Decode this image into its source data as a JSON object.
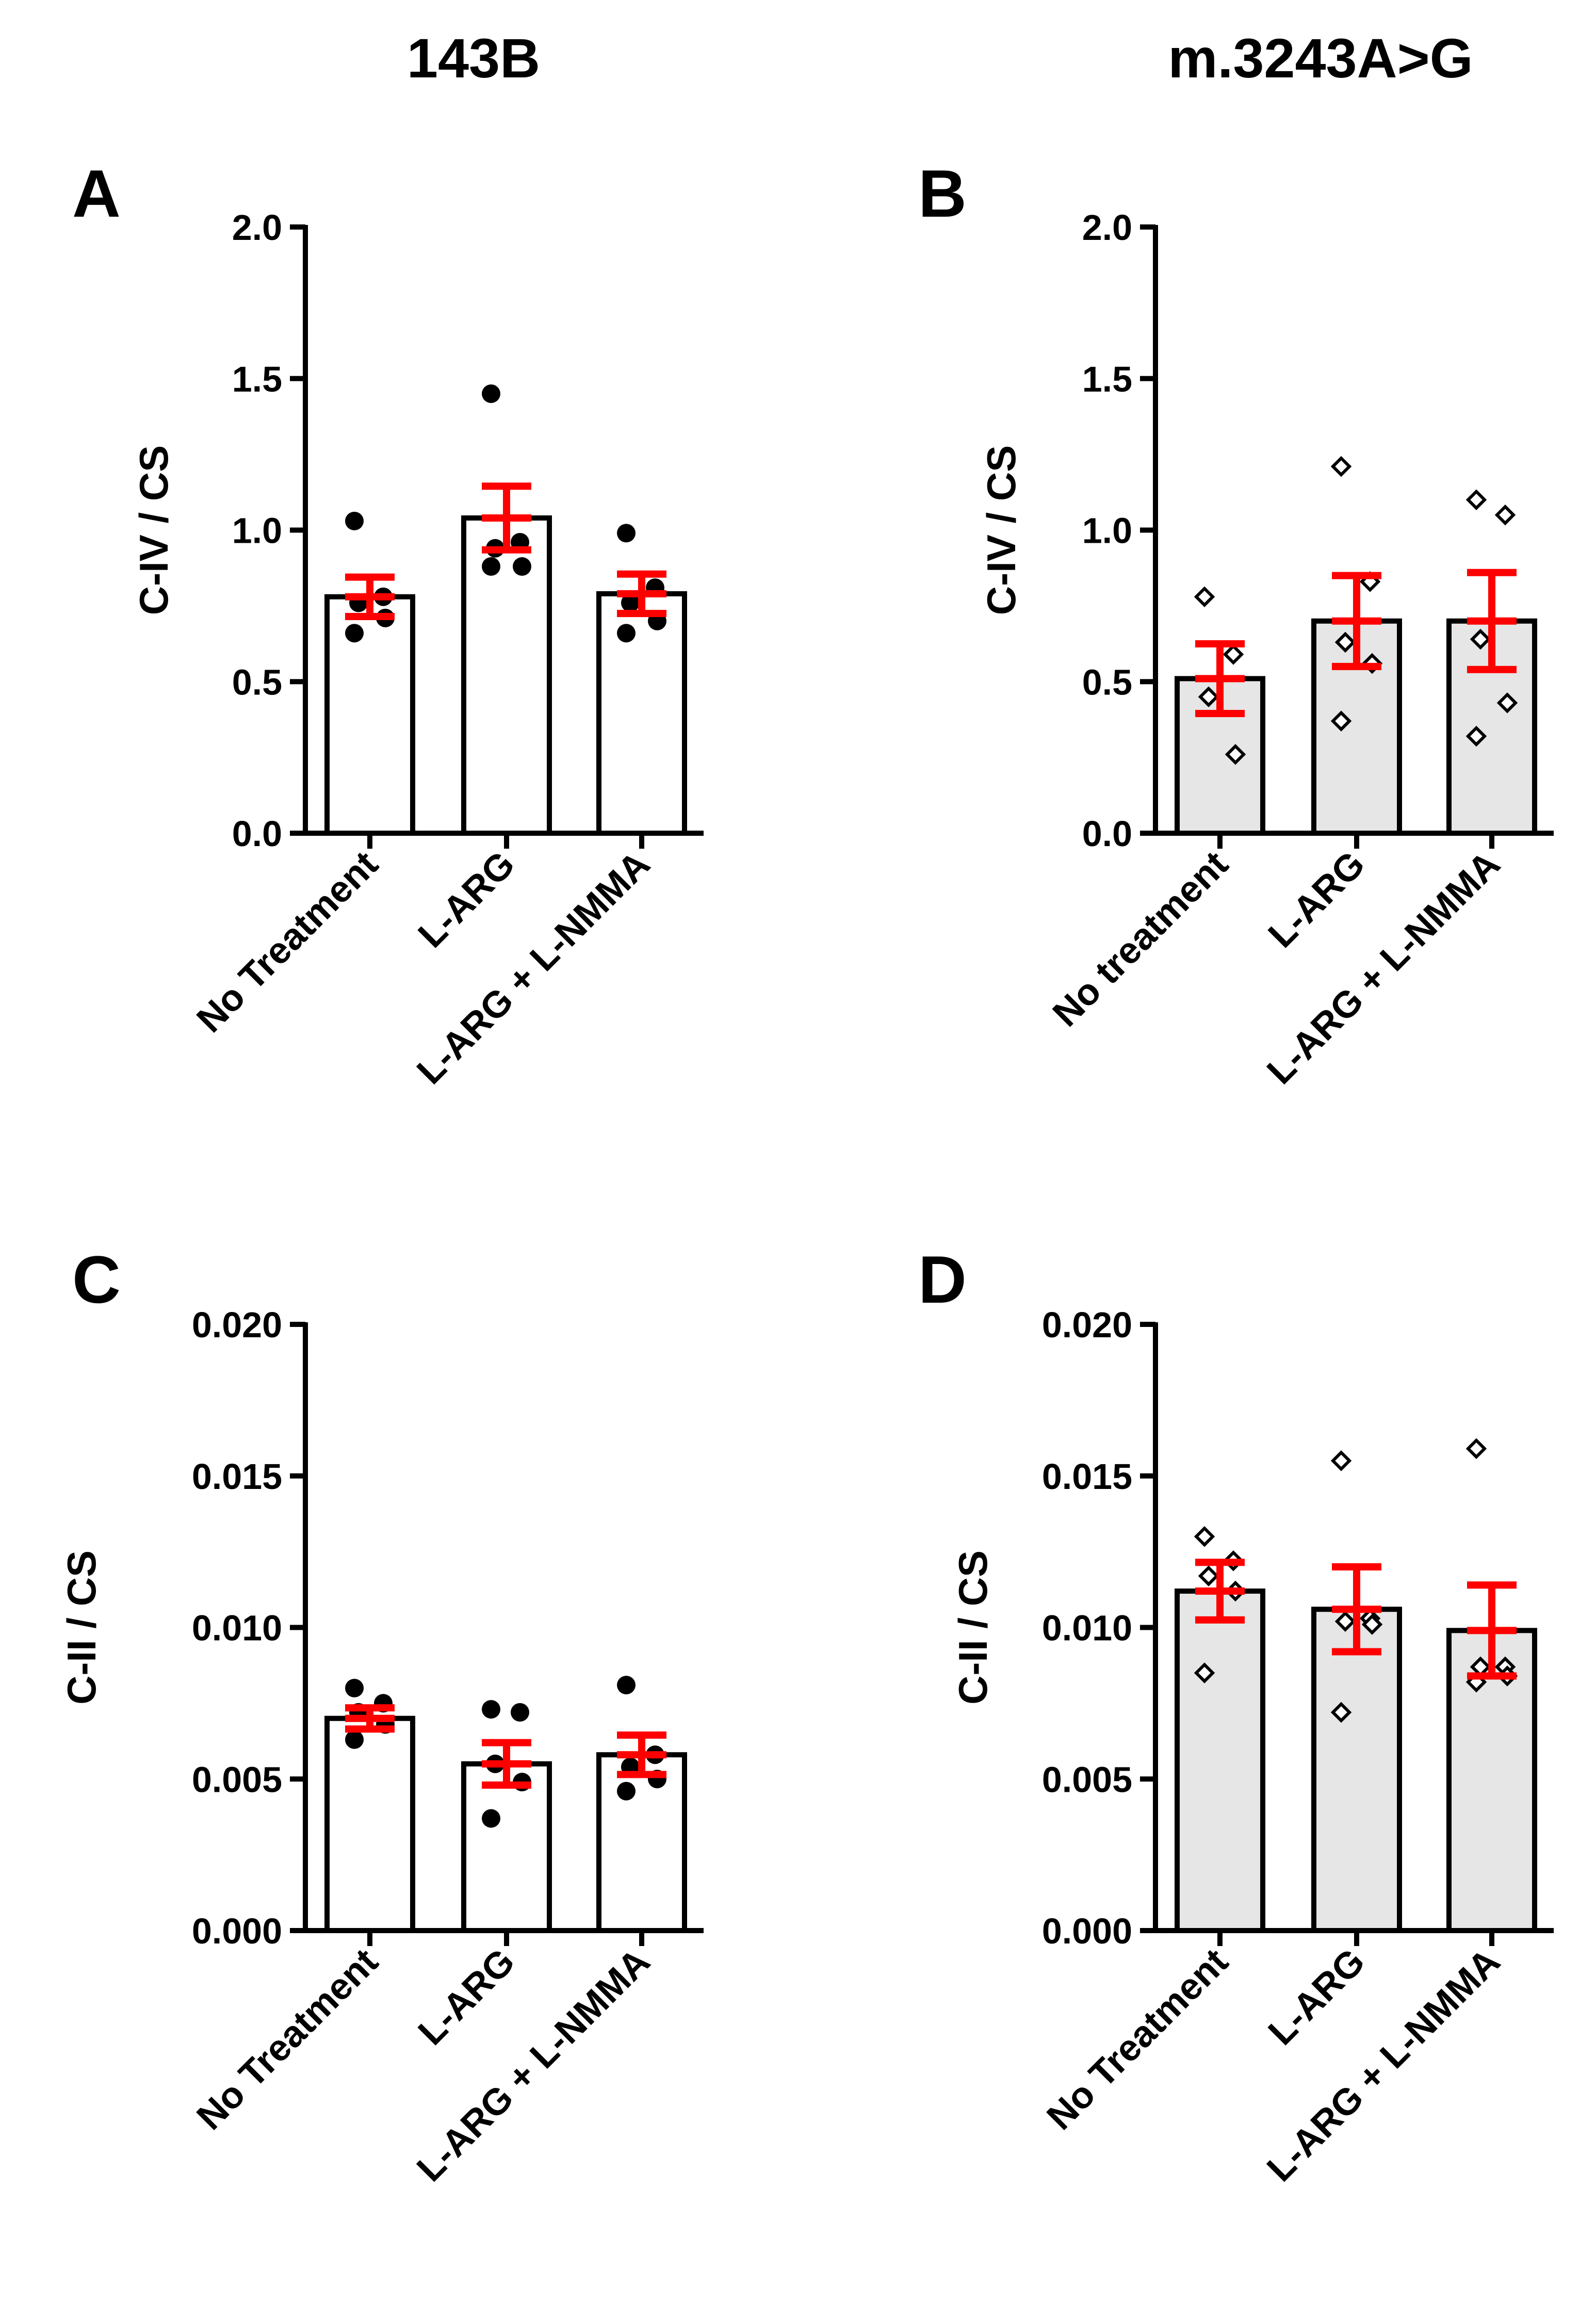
{
  "column_titles": [
    "143B",
    "m.3243A>G"
  ],
  "colors": {
    "open_bar_fill": "#ffffff",
    "grey_bar_fill": "#e6e6e6",
    "bar_stroke": "#000000",
    "error_bar": "#ff0000",
    "point": "#000000"
  },
  "chart_data": [
    {
      "panel": "A",
      "type": "bar",
      "title": "143B",
      "ylabel": "C-IV / CS",
      "xlabel": "",
      "ylim": [
        0,
        2.0
      ],
      "yticks": [
        0.0,
        0.5,
        1.0,
        1.5,
        2.0
      ],
      "ytick_labels": [
        "0.0",
        "0.5",
        "1.0",
        "1.5",
        "2.0"
      ],
      "categories": [
        "No Treatment",
        "L-ARG",
        "L-ARG + L-NMMA"
      ],
      "bar_fill": "#ffffff",
      "marker": "filled-circle",
      "values": [
        0.78,
        1.04,
        0.79
      ],
      "sem": [
        0.065,
        0.105,
        0.065
      ],
      "points": [
        [
          1.03,
          0.78,
          0.76,
          0.71,
          0.66
        ],
        [
          1.45,
          0.96,
          0.94,
          0.88,
          0.88
        ],
        [
          0.99,
          0.81,
          0.76,
          0.7,
          0.66
        ]
      ]
    },
    {
      "panel": "B",
      "type": "bar",
      "title": "m.3243A>G",
      "ylabel": "C-IV / CS",
      "xlabel": "",
      "ylim": [
        0,
        2.0
      ],
      "yticks": [
        0.0,
        0.5,
        1.0,
        1.5,
        2.0
      ],
      "ytick_labels": [
        "0.0",
        "0.5",
        "1.0",
        "1.5",
        "2.0"
      ],
      "categories": [
        "No treatment",
        "L-ARG",
        "L-ARG + L-NMMA"
      ],
      "bar_fill": "#e6e6e6",
      "marker": "open-diamond",
      "values": [
        0.51,
        0.7,
        0.7
      ],
      "sem": [
        0.115,
        0.15,
        0.16
      ],
      "points": [
        [
          0.78,
          0.59,
          0.45,
          0.26
        ],
        [
          1.21,
          0.83,
          0.63,
          0.56,
          0.37
        ],
        [
          1.1,
          1.05,
          0.64,
          0.43,
          0.32
        ]
      ]
    },
    {
      "panel": "C",
      "type": "bar",
      "title": "143B",
      "ylabel": "C-II / CS",
      "xlabel": "",
      "ylim": [
        0,
        0.02
      ],
      "yticks": [
        0.0,
        0.005,
        0.01,
        0.015,
        0.02
      ],
      "ytick_labels": [
        "0.000",
        "0.005",
        "0.010",
        "0.015",
        "0.020"
      ],
      "categories": [
        "No Treatment",
        "L-ARG",
        "L-ARG + L-NMMA"
      ],
      "bar_fill": "#ffffff",
      "marker": "filled-circle",
      "values": [
        0.007,
        0.0055,
        0.0058
      ],
      "sem": [
        0.00035,
        0.0007,
        0.00065
      ],
      "points": [
        [
          0.008,
          0.0075,
          0.0072,
          0.0068,
          0.0063
        ],
        [
          0.0073,
          0.0072,
          0.0055,
          0.0049,
          0.0037
        ],
        [
          0.0081,
          0.0058,
          0.0054,
          0.005,
          0.0046
        ]
      ]
    },
    {
      "panel": "D",
      "type": "bar",
      "title": "m.3243A>G",
      "ylabel": "C-II / CS",
      "xlabel": "",
      "ylim": [
        0,
        0.02
      ],
      "yticks": [
        0.0,
        0.005,
        0.01,
        0.015,
        0.02
      ],
      "ytick_labels": [
        "0.000",
        "0.005",
        "0.010",
        "0.015",
        "0.020"
      ],
      "categories": [
        "No Treatment",
        "L-ARG",
        "L-ARG + L-NMMA"
      ],
      "bar_fill": "#e6e6e6",
      "marker": "open-diamond",
      "values": [
        0.0112,
        0.0106,
        0.0099
      ],
      "sem": [
        0.00095,
        0.0014,
        0.0015
      ],
      "points": [
        [
          0.013,
          0.0122,
          0.0117,
          0.0112,
          0.0085
        ],
        [
          0.0155,
          0.0103,
          0.0102,
          0.0101,
          0.0072
        ],
        [
          0.0159,
          0.0087,
          0.0087,
          0.0084,
          0.0082
        ]
      ]
    }
  ]
}
